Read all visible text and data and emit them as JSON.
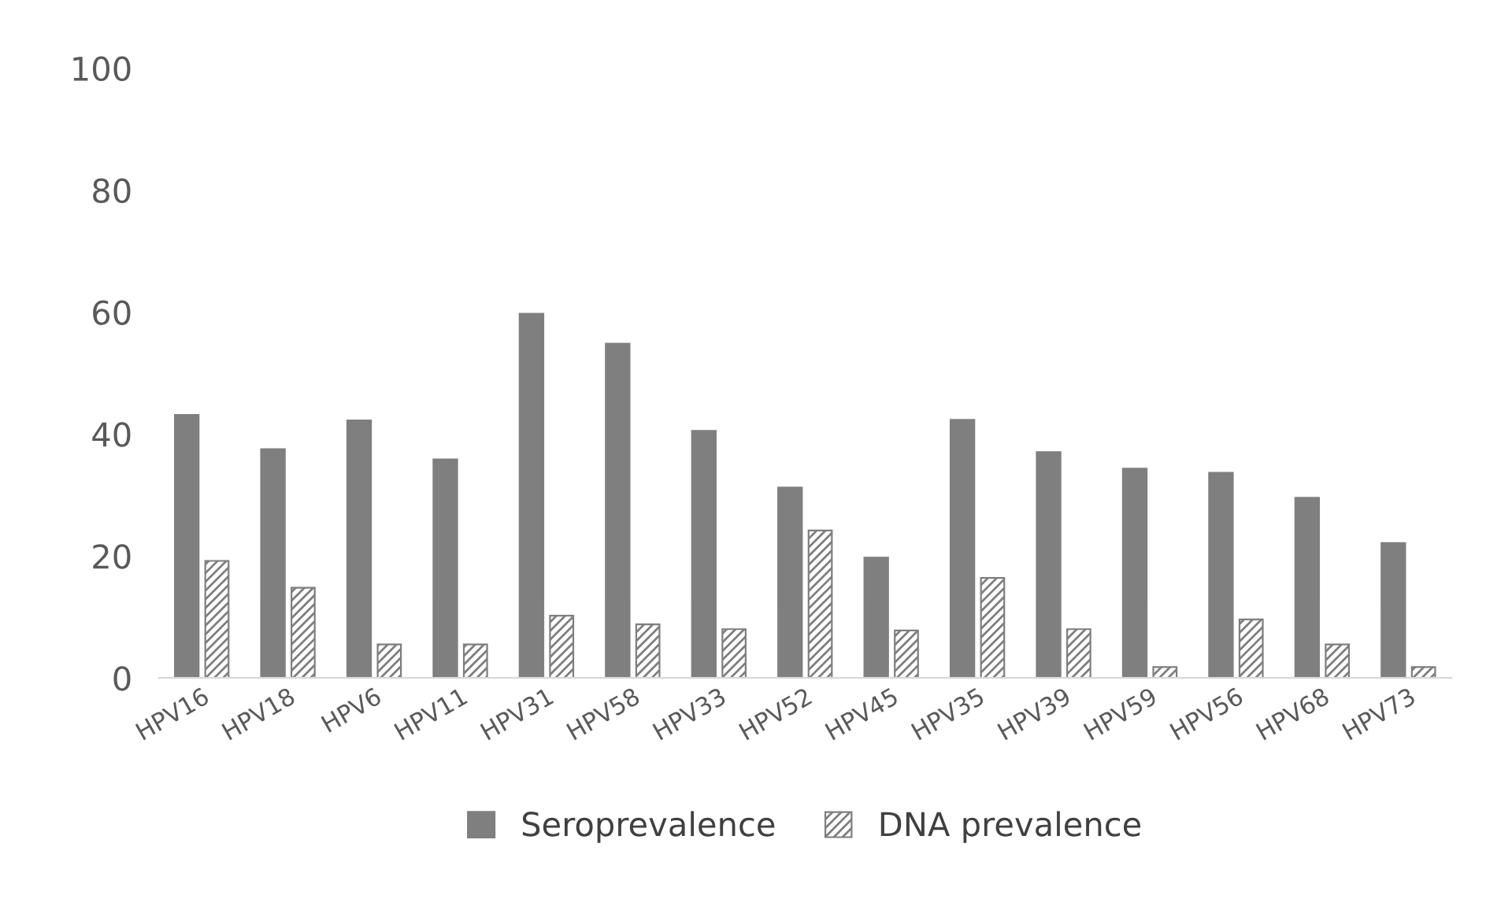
{
  "chart_data": {
    "type": "bar",
    "categories": [
      "HPV16",
      "HPV18",
      "HPV6",
      "HPV11",
      "HPV31",
      "HPV58",
      "HPV33",
      "HPV52",
      "HPV45",
      "HPV35",
      "HPV39",
      "HPV59",
      "HPV56",
      "HPV68",
      "HPV73"
    ],
    "series": [
      {
        "name": "Seroprevalence",
        "color": "#7f7f7f",
        "values": [
          43.1,
          37.5,
          42.2,
          35.8,
          59.7,
          54.8,
          40.5,
          31.2,
          19.7,
          42.3,
          37.0,
          34.3,
          33.6,
          29.5,
          22.1
        ]
      },
      {
        "name": "DNA prevalence",
        "color": "#7f7f7f",
        "values": [
          19.2,
          14.8,
          5.5,
          5.5,
          10.2,
          8.8,
          8.0,
          24.2,
          7.8,
          16.4,
          8.0,
          1.8,
          9.6,
          5.5,
          1.8
        ]
      }
    ],
    "ylim": [
      0,
      100
    ],
    "yticks": [
      0,
      20,
      40,
      60,
      80,
      100
    ],
    "grid": false,
    "legend": "bottom"
  }
}
